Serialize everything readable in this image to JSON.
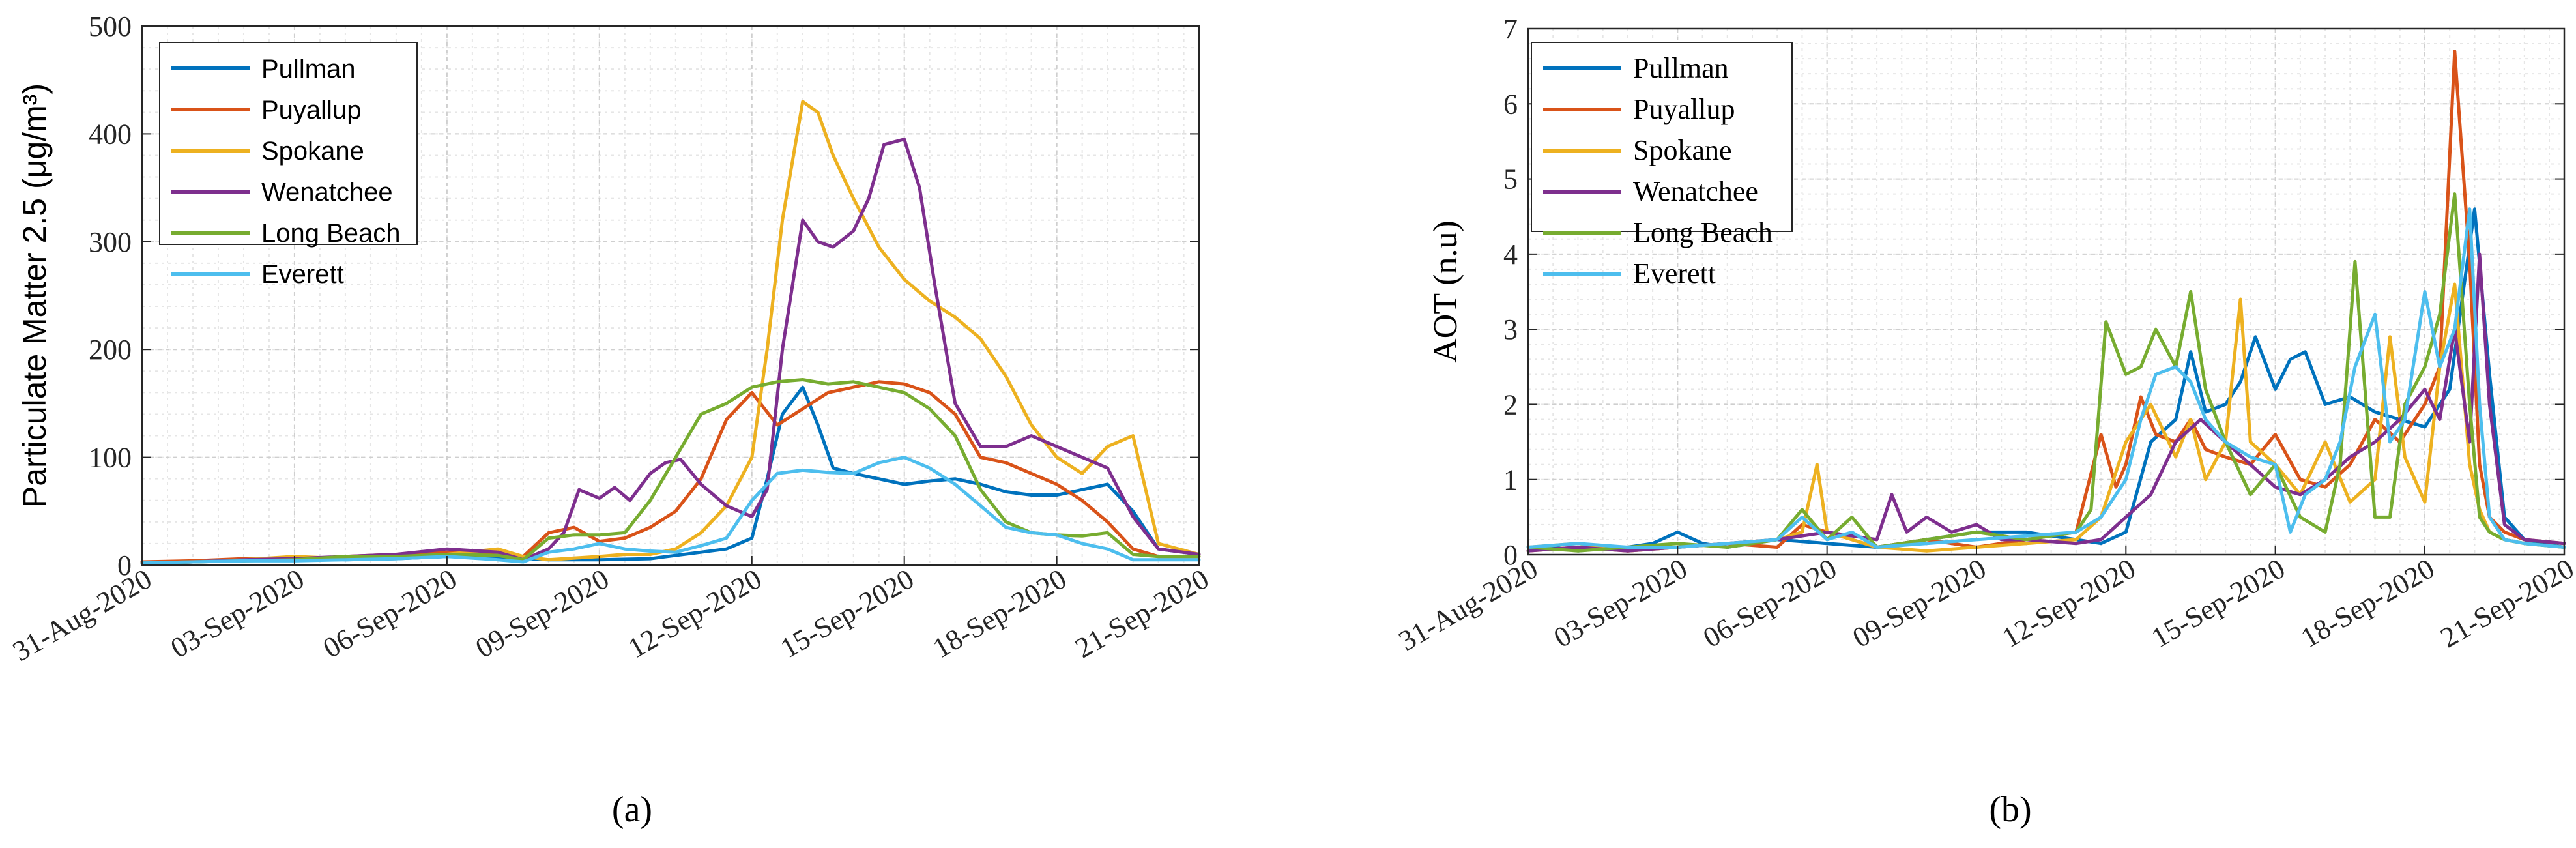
{
  "chart_data": [
    {
      "panel": "a",
      "type": "line",
      "caption": "(a)",
      "ylabel": "Particulate Matter 2.5 (μg/m³)",
      "xlabel": "",
      "ylim": [
        0,
        500
      ],
      "yticks": [
        "0",
        "100",
        "200",
        "300",
        "400",
        "500"
      ],
      "xlim": [
        0,
        20.8
      ],
      "xticks": [
        {
          "day": 0,
          "label": "31-Aug-2020"
        },
        {
          "day": 3,
          "label": "03-Sep-2020"
        },
        {
          "day": 6,
          "label": "06-Sep-2020"
        },
        {
          "day": 9,
          "label": "09-Sep-2020"
        },
        {
          "day": 12,
          "label": "12-Sep-2020"
        },
        {
          "day": 15,
          "label": "15-Sep-2020"
        },
        {
          "day": 18,
          "label": "18-Sep-2020"
        },
        {
          "day": 21,
          "label": "21-Sep-2020"
        }
      ],
      "grid": true,
      "legend_position": "top-left",
      "series": [
        {
          "name": "Pullman",
          "color": "#0072BD",
          "x": [
            0,
            1,
            2,
            3,
            4,
            5,
            6,
            7,
            8,
            9,
            10,
            11,
            11.5,
            12,
            12.3,
            12.6,
            13,
            13.3,
            13.6,
            14,
            14.5,
            15,
            15.5,
            16,
            16.5,
            17,
            17.5,
            18,
            18.5,
            19,
            19.5,
            20,
            20.8
          ],
          "y": [
            2,
            3,
            4,
            8,
            5,
            6,
            8,
            7,
            5,
            5,
            6,
            12,
            15,
            25,
            80,
            140,
            165,
            130,
            90,
            85,
            80,
            75,
            78,
            80,
            75,
            68,
            65,
            65,
            70,
            75,
            50,
            15,
            10
          ]
        },
        {
          "name": "Puyallup",
          "color": "#D95319",
          "x": [
            0,
            1,
            2,
            3,
            4,
            5,
            6,
            7,
            7.5,
            8,
            8.5,
            9,
            9.5,
            10,
            10.5,
            11,
            11.5,
            12,
            12.5,
            13,
            13.5,
            14,
            14.5,
            15,
            15.5,
            16,
            16.5,
            17,
            17.5,
            18,
            18.5,
            19,
            19.5,
            20,
            20.8
          ],
          "y": [
            3,
            4,
            6,
            5,
            8,
            10,
            12,
            12,
            8,
            30,
            35,
            22,
            25,
            35,
            50,
            80,
            135,
            160,
            130,
            145,
            160,
            165,
            170,
            168,
            160,
            140,
            100,
            95,
            85,
            75,
            60,
            40,
            15,
            8,
            8
          ]
        },
        {
          "name": "Spokane",
          "color": "#EDB120",
          "x": [
            0,
            1,
            2,
            3,
            4,
            5,
            6,
            7,
            7.5,
            8,
            9,
            9.5,
            10,
            10.5,
            11,
            11.5,
            12,
            12.3,
            12.6,
            13,
            13.3,
            13.6,
            14,
            14.5,
            15,
            15.5,
            16,
            16.5,
            17,
            17.5,
            18,
            18.5,
            19,
            19.5,
            20,
            20.8
          ],
          "y": [
            2,
            3,
            5,
            8,
            6,
            7,
            10,
            15,
            8,
            5,
            8,
            10,
            10,
            15,
            30,
            55,
            100,
            200,
            320,
            430,
            420,
            380,
            340,
            295,
            265,
            245,
            230,
            210,
            175,
            130,
            100,
            85,
            110,
            120,
            20,
            10
          ]
        },
        {
          "name": "Wenatchee",
          "color": "#7E2F8E",
          "x": [
            0,
            1,
            2,
            3,
            4,
            5,
            6,
            7,
            7.5,
            8,
            8.3,
            8.6,
            9,
            9.3,
            9.6,
            10,
            10.3,
            10.6,
            11,
            11.5,
            12,
            12.3,
            12.6,
            13,
            13.3,
            13.6,
            14,
            14.3,
            14.6,
            15,
            15.3,
            15.6,
            16,
            16.5,
            17,
            17.5,
            18,
            18.5,
            19,
            19.5,
            20,
            20.8
          ],
          "y": [
            2,
            3,
            5,
            6,
            8,
            10,
            15,
            12,
            5,
            15,
            30,
            70,
            62,
            72,
            60,
            85,
            95,
            98,
            75,
            55,
            45,
            70,
            200,
            320,
            300,
            295,
            310,
            340,
            390,
            395,
            350,
            260,
            150,
            110,
            110,
            120,
            110,
            100,
            90,
            45,
            15,
            10
          ]
        },
        {
          "name": "Long Beach",
          "color": "#77AC30",
          "x": [
            0,
            1,
            2,
            3,
            4,
            5,
            6,
            7,
            7.5,
            8,
            8.5,
            9,
            9.5,
            10,
            10.5,
            11,
            11.5,
            12,
            12.5,
            13,
            13.5,
            14,
            14.5,
            15,
            15.5,
            16,
            16.5,
            17,
            17.5,
            18,
            18.5,
            19,
            19.5,
            20,
            20.8
          ],
          "y": [
            2,
            3,
            4,
            5,
            8,
            8,
            10,
            9,
            5,
            25,
            28,
            28,
            30,
            60,
            100,
            140,
            150,
            165,
            170,
            172,
            168,
            170,
            165,
            160,
            145,
            120,
            70,
            40,
            30,
            28,
            27,
            30,
            10,
            8,
            8
          ]
        },
        {
          "name": "Everett",
          "color": "#4DBEEE",
          "x": [
            0,
            1,
            2,
            3,
            4,
            5,
            6,
            7,
            7.5,
            8,
            8.5,
            9,
            9.5,
            10,
            10.5,
            11,
            11.5,
            12,
            12.5,
            13,
            13.5,
            14,
            14.5,
            15,
            15.5,
            16,
            16.5,
            17,
            17.5,
            18,
            18.5,
            19,
            19.5,
            20,
            20.8
          ],
          "y": [
            2,
            3,
            4,
            4,
            5,
            6,
            8,
            5,
            3,
            12,
            15,
            20,
            15,
            13,
            12,
            18,
            25,
            60,
            85,
            88,
            86,
            85,
            95,
            100,
            90,
            75,
            55,
            35,
            30,
            28,
            20,
            15,
            5,
            5,
            5
          ]
        }
      ]
    },
    {
      "panel": "b",
      "type": "line",
      "caption": "(b)",
      "ylabel": "AOT (n.u)",
      "xlabel": "",
      "ylim": [
        0,
        7
      ],
      "yticks": [
        "0",
        "1",
        "2",
        "3",
        "4",
        "5",
        "6",
        "7"
      ],
      "xlim": [
        0,
        20.8
      ],
      "xticks": [
        {
          "day": 0,
          "label": "31-Aug-2020"
        },
        {
          "day": 3,
          "label": "03-Sep-2020"
        },
        {
          "day": 6,
          "label": "06-Sep-2020"
        },
        {
          "day": 9,
          "label": "09-Sep-2020"
        },
        {
          "day": 12,
          "label": "12-Sep-2020"
        },
        {
          "day": 15,
          "label": "15-Sep-2020"
        },
        {
          "day": 18,
          "label": "18-Sep-2020"
        },
        {
          "day": 21,
          "label": "21-Sep-2020"
        }
      ],
      "grid": true,
      "legend_position": "top-left",
      "series": [
        {
          "name": "Pullman",
          "color": "#0072BD",
          "x": [
            0,
            0.5,
            1,
            1.5,
            2,
            2.5,
            3,
            3.5,
            4,
            5,
            6,
            7,
            8,
            9,
            10,
            11,
            11.5,
            12,
            12.5,
            13,
            13.3,
            13.6,
            14,
            14.3,
            14.6,
            15,
            15.3,
            15.6,
            16,
            16.5,
            17,
            17.5,
            18,
            18.5,
            19,
            19.3,
            19.6,
            20,
            20.3,
            20.8
          ],
          "y": [
            0.1,
            0.1,
            0.05,
            0.08,
            0.1,
            0.15,
            0.3,
            0.15,
            0.1,
            0.2,
            0.15,
            0.1,
            0.2,
            0.3,
            0.3,
            0.2,
            0.15,
            0.3,
            1.5,
            1.8,
            2.7,
            1.9,
            2.0,
            2.3,
            2.9,
            2.2,
            2.6,
            2.7,
            2.0,
            2.1,
            1.9,
            1.8,
            1.7,
            2.2,
            4.6,
            2.4,
            0.5,
            0.2,
            0.15,
            0.1
          ]
        },
        {
          "name": "Puyallup",
          "color": "#D95319",
          "x": [
            0,
            1,
            2,
            3,
            4,
            5,
            5.5,
            6,
            6.5,
            7,
            8,
            9,
            10,
            11,
            11.5,
            11.8,
            12,
            12.3,
            12.6,
            13,
            13.3,
            13.6,
            14,
            14.5,
            15,
            15.5,
            16,
            16.5,
            17,
            17.5,
            18,
            18.3,
            18.6,
            18.9,
            19.1,
            19.3,
            19.6,
            20,
            20.8
          ],
          "y": [
            0.05,
            0.1,
            0.05,
            0.1,
            0.15,
            0.1,
            0.4,
            0.3,
            0.2,
            0.1,
            0.2,
            0.1,
            0.2,
            0.3,
            1.6,
            0.9,
            1.2,
            2.1,
            1.6,
            1.5,
            1.8,
            1.4,
            1.3,
            1.2,
            1.6,
            1.0,
            0.9,
            1.2,
            1.8,
            1.5,
            2.0,
            2.5,
            6.7,
            3.9,
            1.2,
            0.5,
            0.3,
            0.2,
            0.15
          ]
        },
        {
          "name": "Spokane",
          "color": "#EDB120",
          "x": [
            0,
            1,
            2,
            3,
            4,
            5,
            5.5,
            5.8,
            6,
            6.5,
            7,
            8,
            9,
            10,
            11,
            11.5,
            12,
            12.5,
            13,
            13.3,
            13.6,
            14,
            14.3,
            14.5,
            15,
            15.5,
            16,
            16.5,
            17,
            17.3,
            17.6,
            18,
            18.3,
            18.6,
            18.9,
            19.1,
            19.3,
            19.6,
            20,
            20.8
          ],
          "y": [
            0.1,
            0.15,
            0.05,
            0.1,
            0.15,
            0.2,
            0.3,
            1.2,
            0.3,
            0.2,
            0.1,
            0.05,
            0.1,
            0.15,
            0.2,
            0.5,
            1.5,
            2.0,
            1.3,
            1.8,
            1.0,
            1.5,
            3.4,
            1.5,
            1.2,
            0.8,
            1.5,
            0.7,
            1.0,
            2.9,
            1.3,
            0.7,
            2.5,
            3.6,
            1.2,
            0.6,
            0.3,
            0.2,
            0.15,
            0.1
          ]
        },
        {
          "name": "Wenatchee",
          "color": "#7E2F8E",
          "x": [
            0,
            1,
            2,
            3,
            4,
            5,
            6,
            7,
            7.3,
            7.6,
            8,
            8.5,
            9,
            9.5,
            10,
            11,
            11.5,
            12,
            12.5,
            13,
            13.5,
            14,
            14.5,
            15,
            15.5,
            16,
            16.5,
            17,
            17.5,
            18,
            18.3,
            18.6,
            18.9,
            19.1,
            19.3,
            19.6,
            20,
            20.8
          ],
          "y": [
            0.05,
            0.1,
            0.05,
            0.1,
            0.15,
            0.2,
            0.3,
            0.2,
            0.8,
            0.3,
            0.5,
            0.3,
            0.4,
            0.2,
            0.2,
            0.15,
            0.2,
            0.5,
            0.8,
            1.5,
            1.8,
            1.5,
            1.2,
            0.9,
            0.8,
            1.0,
            1.3,
            1.5,
            1.8,
            2.2,
            1.8,
            3.0,
            1.5,
            4.0,
            2.0,
            0.4,
            0.2,
            0.15
          ]
        },
        {
          "name": "Long Beach",
          "color": "#77AC30",
          "x": [
            0,
            1,
            2,
            3,
            4,
            5,
            5.5,
            6,
            6.5,
            7,
            8,
            9,
            10,
            10.5,
            11,
            11.3,
            11.6,
            12,
            12.3,
            12.6,
            13,
            13.3,
            13.6,
            14,
            14.5,
            15,
            15.5,
            16,
            16.3,
            16.6,
            17,
            17.3,
            17.6,
            18,
            18.3,
            18.6,
            18.9,
            19.1,
            19.3,
            19.6,
            20,
            20.8
          ],
          "y": [
            0.1,
            0.05,
            0.1,
            0.15,
            0.1,
            0.2,
            0.6,
            0.2,
            0.5,
            0.1,
            0.2,
            0.3,
            0.2,
            0.25,
            0.3,
            0.6,
            3.1,
            2.4,
            2.5,
            3.0,
            2.5,
            3.5,
            2.2,
            1.5,
            0.8,
            1.2,
            0.5,
            0.3,
            1.2,
            3.9,
            0.5,
            0.5,
            2.0,
            2.5,
            3.2,
            4.8,
            2.0,
            0.5,
            0.3,
            0.2,
            0.15,
            0.1
          ]
        },
        {
          "name": "Everett",
          "color": "#4DBEEE",
          "x": [
            0,
            1,
            2,
            3,
            4,
            5,
            5.5,
            6,
            6.5,
            7,
            8,
            9,
            10,
            11,
            11.5,
            12,
            12.3,
            12.6,
            13,
            13.3,
            13.6,
            14,
            14.5,
            15,
            15.3,
            15.6,
            16,
            16.3,
            16.6,
            17,
            17.3,
            17.6,
            18,
            18.3,
            18.6,
            18.9,
            19.1,
            19.3,
            19.6,
            20,
            20.8
          ],
          "y": [
            0.1,
            0.15,
            0.1,
            0.1,
            0.15,
            0.2,
            0.5,
            0.2,
            0.3,
            0.1,
            0.15,
            0.2,
            0.25,
            0.3,
            0.5,
            1.0,
            1.8,
            2.4,
            2.5,
            2.3,
            1.8,
            1.5,
            1.3,
            1.2,
            0.3,
            0.8,
            1.0,
            1.5,
            2.5,
            3.2,
            1.5,
            1.8,
            3.5,
            2.5,
            3.0,
            4.6,
            2.0,
            0.5,
            0.2,
            0.15,
            0.1
          ]
        }
      ]
    }
  ]
}
